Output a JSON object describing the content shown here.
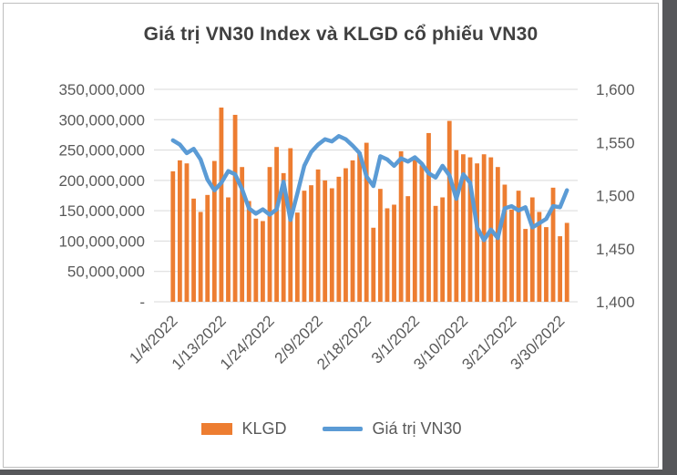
{
  "colors": {
    "bar": "#ED7D31",
    "line": "#5B9BD5",
    "grid": "#D9D9D9",
    "axis_text": "#595959",
    "title_text": "#404040",
    "frame_border": "#BFBFBF",
    "canvas_edge": "#56575A"
  },
  "chart_data": {
    "type": "combo",
    "title": "Giá trị VN30 Index và KLGD cổ phiếu VN30",
    "legend_position": "bottom",
    "grid": true,
    "x": [
      "1/4/2022",
      "1/5/2022",
      "1/6/2022",
      "1/7/2022",
      "1/10/2022",
      "1/11/2022",
      "1/12/2022",
      "1/13/2022",
      "1/14/2022",
      "1/17/2022",
      "1/18/2022",
      "1/19/2022",
      "1/20/2022",
      "1/21/2022",
      "1/24/2022",
      "1/25/2022",
      "1/26/2022",
      "1/27/2022",
      "1/28/2022",
      "2/7/2022",
      "2/8/2022",
      "2/9/2022",
      "2/10/2022",
      "2/11/2022",
      "2/14/2022",
      "2/15/2022",
      "2/16/2022",
      "2/17/2022",
      "2/18/2022",
      "2/21/2022",
      "2/22/2022",
      "2/23/2022",
      "2/24/2022",
      "2/25/2022",
      "2/28/2022",
      "3/1/2022",
      "3/2/2022",
      "3/3/2022",
      "3/4/2022",
      "3/7/2022",
      "3/8/2022",
      "3/9/2022",
      "3/10/2022",
      "3/11/2022",
      "3/14/2022",
      "3/15/2022",
      "3/16/2022",
      "3/17/2022",
      "3/18/2022",
      "3/21/2022",
      "3/22/2022",
      "3/23/2022",
      "3/24/2022",
      "3/25/2022",
      "3/28/2022",
      "3/29/2022",
      "3/30/2022",
      "3/31/2022"
    ],
    "x_tick_labels": [
      "1/4/2022",
      "1/13/2022",
      "1/24/2022",
      "2/9/2022",
      "2/18/2022",
      "3/1/2022",
      "3/10/2022",
      "3/21/2022",
      "3/30/2022"
    ],
    "x_tick_indices": [
      0,
      7,
      14,
      21,
      28,
      35,
      42,
      49,
      56
    ],
    "series": [
      {
        "name": "KLGD",
        "type": "bar",
        "axis": "left",
        "color": "#ED7D31",
        "values": [
          215000000,
          233000000,
          228000000,
          170000000,
          148000000,
          176000000,
          232000000,
          320000000,
          172000000,
          308000000,
          222000000,
          166000000,
          137000000,
          133000000,
          222000000,
          255000000,
          212000000,
          253000000,
          147000000,
          183000000,
          192000000,
          218000000,
          200000000,
          187000000,
          206000000,
          220000000,
          233000000,
          246000000,
          262000000,
          122000000,
          186000000,
          154000000,
          160000000,
          248000000,
          174000000,
          238000000,
          225000000,
          278000000,
          158000000,
          172000000,
          298000000,
          250000000,
          243000000,
          238000000,
          228000000,
          243000000,
          238000000,
          222000000,
          193000000,
          152000000,
          183000000,
          120000000,
          172000000,
          148000000,
          123000000,
          188000000,
          108000000,
          130000000
        ]
      },
      {
        "name": "Giá trị VN30",
        "type": "line",
        "axis": "right",
        "color": "#5B9BD5",
        "values": [
          1552,
          1548,
          1540,
          1544,
          1534,
          1515,
          1505,
          1512,
          1523,
          1520,
          1506,
          1488,
          1483,
          1487,
          1482,
          1487,
          1513,
          1477,
          1502,
          1528,
          1541,
          1548,
          1553,
          1551,
          1556,
          1553,
          1547,
          1540,
          1518,
          1509,
          1537,
          1534,
          1528,
          1535,
          1532,
          1536,
          1530,
          1521,
          1517,
          1528,
          1519,
          1497,
          1520,
          1512,
          1470,
          1458,
          1468,
          1460,
          1488,
          1490,
          1486,
          1489,
          1470,
          1474,
          1478,
          1490,
          1489,
          1505
        ]
      }
    ],
    "left_axis": {
      "min": 0,
      "max": 350000000,
      "step": 50000000,
      "tick_labels": [
        "-",
        "50,000,000",
        "100,000,000",
        "150,000,000",
        "200,000,000",
        "250,000,000",
        "300,000,000",
        "350,000,000"
      ]
    },
    "right_axis": {
      "min": 1400,
      "max": 1600,
      "step": 50,
      "tick_labels": [
        "1,400",
        "1,450",
        "1,500",
        "1,550",
        "1,600"
      ]
    }
  }
}
